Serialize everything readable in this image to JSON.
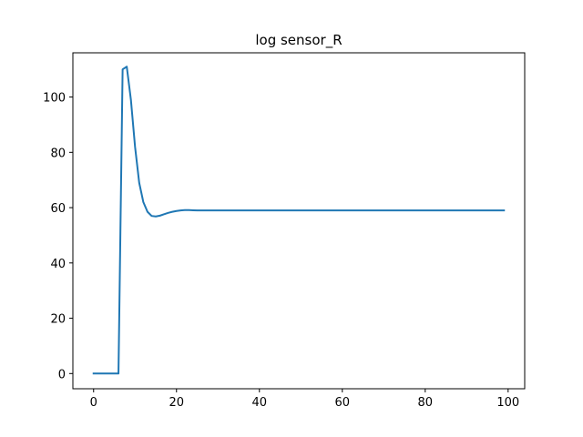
{
  "chart_data": {
    "type": "line",
    "title": "log sensor_R",
    "xlabel": "",
    "ylabel": "",
    "xlim": [
      -5,
      104
    ],
    "ylim": [
      -5.5,
      116
    ],
    "grid": false,
    "legend": "none",
    "x_ticks": [
      0,
      20,
      40,
      60,
      80,
      100
    ],
    "x_tick_labels": [
      "0",
      "20",
      "40",
      "60",
      "80",
      "100"
    ],
    "y_ticks": [
      0,
      20,
      40,
      60,
      80,
      100
    ],
    "y_tick_labels": [
      "0",
      "20",
      "40",
      "60",
      "80",
      "100"
    ],
    "series": [
      {
        "color": "#1f77b4",
        "x": [
          0,
          1,
          2,
          3,
          4,
          5,
          6,
          7,
          8,
          9,
          10,
          11,
          12,
          13,
          14,
          15,
          16,
          17,
          18,
          19,
          20,
          21,
          22,
          23,
          24,
          25,
          26,
          27,
          28,
          29,
          30,
          35,
          40,
          45,
          50,
          55,
          60,
          65,
          70,
          75,
          80,
          85,
          90,
          95,
          99
        ],
        "y": [
          0,
          0,
          0,
          0,
          0,
          0,
          0,
          110,
          111,
          99,
          82,
          69,
          62,
          58.5,
          57,
          56.8,
          57.1,
          57.6,
          58.1,
          58.5,
          58.8,
          59,
          59.1,
          59.1,
          59.05,
          59,
          59,
          59,
          59,
          59,
          59,
          59,
          59,
          59,
          59,
          59,
          59,
          59,
          59,
          59,
          59,
          59,
          59,
          59,
          59
        ]
      }
    ]
  }
}
